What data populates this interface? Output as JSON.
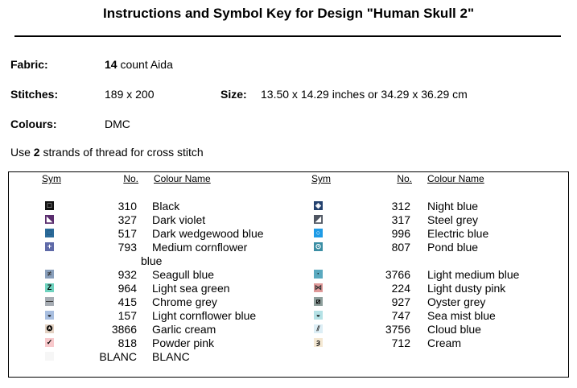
{
  "title": "Instructions and Symbol Key for Design \"Human Skull 2\"",
  "fabric": {
    "label": "Fabric:",
    "count": "14",
    "rest": " count Aida"
  },
  "stitches": {
    "label": "Stitches:",
    "value": "189 x 200"
  },
  "size": {
    "label": "Size:",
    "value": "13.50 x 14.29 inches or 34.29 x 36.29 cm"
  },
  "colours": {
    "label": "Colours:",
    "value": "DMC"
  },
  "strands": {
    "pre": "Use ",
    "count": "2",
    "post": " strands of thread for cross stitch"
  },
  "headers": {
    "sym": "Sym",
    "no": "No.",
    "name": "Colour Name"
  },
  "left": [
    {
      "no": "310",
      "name": "Black",
      "color": "#111111",
      "glyph": "□",
      "fg": "#fff"
    },
    {
      "no": "327",
      "name": "Dark violet",
      "color": "#5a2d6e",
      "glyph": "◣",
      "fg": "#fff"
    },
    {
      "no": "517",
      "name": "Dark wedgewood blue",
      "color": "#2b6b9a",
      "glyph": "□",
      "fg": "#1a4a70"
    },
    {
      "no": "793",
      "name": "Medium cornflower",
      "name2": "blue",
      "color": "#5f6aa8",
      "glyph": "+",
      "fg": "#fff"
    },
    {
      "no": "932",
      "name": "Seagull blue",
      "color": "#8aa0bc",
      "glyph": "≠",
      "fg": "#333"
    },
    {
      "no": "964",
      "name": "Light sea green",
      "color": "#6fd3bf",
      "glyph": "Z",
      "fg": "#000"
    },
    {
      "no": "415",
      "name": "Chrome grey",
      "color": "#a6acb3",
      "glyph": "—",
      "fg": "#333"
    },
    {
      "no": "157",
      "name": "Light cornflower blue",
      "color": "#a9bfe0",
      "glyph": "◒",
      "fg": "#000"
    },
    {
      "no": "3866",
      "name": "Garlic cream",
      "color": "#e3d2c3",
      "glyph": "✪",
      "fg": "#000"
    },
    {
      "no": "818",
      "name": "Powder pink",
      "color": "#f8c9cc",
      "glyph": "✓",
      "fg": "#000"
    },
    {
      "no": "BLANC",
      "name": "BLANC",
      "color": "#f6f6f6",
      "glyph": "",
      "fg": "#000"
    }
  ],
  "right": [
    {
      "no": "312",
      "name": "Night blue",
      "color": "#23416e",
      "glyph": "◈",
      "fg": "#fff"
    },
    {
      "no": "317",
      "name": "Steel grey",
      "color": "#4f5662",
      "glyph": "◢",
      "fg": "#fff"
    },
    {
      "no": "996",
      "name": "Electric blue",
      "color": "#1e9be6",
      "glyph": "○",
      "fg": "#fff"
    },
    {
      "no": "807",
      "name": "Pond blue",
      "color": "#3b8ea4",
      "glyph": "⊙",
      "fg": "#fff"
    },
    {
      "no": "3766",
      "name": "Light medium blue",
      "color": "#5aa9bf",
      "glyph": "·",
      "fg": "#000"
    },
    {
      "no": "224",
      "name": "Light dusty pink",
      "color": "#e09a9a",
      "glyph": "⋈",
      "fg": "#333"
    },
    {
      "no": "927",
      "name": "Oyster grey",
      "color": "#8e9f9c",
      "glyph": "⧄",
      "fg": "#000"
    },
    {
      "no": "747",
      "name": "Sea mist blue",
      "color": "#b5e2e6",
      "glyph": "◒",
      "fg": "#000"
    },
    {
      "no": "3756",
      "name": "Cloud blue",
      "color": "#ddeef5",
      "glyph": "⫽",
      "fg": "#333"
    },
    {
      "no": "712",
      "name": "Cream",
      "color": "#f4e8d3",
      "glyph": "ȝ",
      "fg": "#000"
    }
  ]
}
